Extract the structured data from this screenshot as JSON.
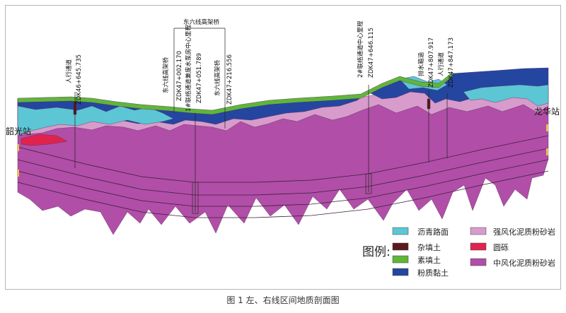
{
  "colors": {
    "asphalt": "#5cc6d4",
    "fill_misc": "#5a1a1c",
    "plain_fill": "#5fb63a",
    "silty_clay": "#2446a0",
    "strong_weathered": "#d79ccb",
    "round_gravel": "#e0234d",
    "moderate_weathered": "#b14ea7",
    "line": "#3a1e3a"
  },
  "stations": {
    "left": "韶光站",
    "right": "龙华站"
  },
  "annotations": {
    "bridge_top": "东六线高架桥",
    "a1": "人行通道",
    "a1_ch": "ZDK46+645.735",
    "a2": "东六线高架桥",
    "a3_ch": "ZDK47+002.170",
    "a4": "1#联络通道兼废水泵房中心里程",
    "a5_ch": "ZDK47+051.789",
    "a6": "东六线高架桥",
    "a7_ch": "ZDK47+216.556",
    "a8": "2#联络通道中心里程",
    "a9_ch": "ZDK47+646.115",
    "a10": "排水箱涵",
    "a11_ch": "ZDK47+807.917",
    "a12": "人行通道",
    "a13_ch": "ZDK47+847.173"
  },
  "legend": {
    "title": "图例:",
    "items": [
      {
        "label": "沥青路面",
        "color": "#5cc6d4"
      },
      {
        "label": "杂填土",
        "color": "#5a1a1c"
      },
      {
        "label": "素填土",
        "color": "#5fb63a"
      },
      {
        "label": "粉质黏土",
        "color": "#2446a0"
      },
      {
        "label": "强风化泥质粉砂岩",
        "color": "#d79ccb"
      },
      {
        "label": "圆砾",
        "color": "#e0234d"
      },
      {
        "label": "中风化泥质粉砂岩",
        "color": "#b14ea7"
      }
    ]
  },
  "caption": "图 1   左、右线区间地质剖面图"
}
